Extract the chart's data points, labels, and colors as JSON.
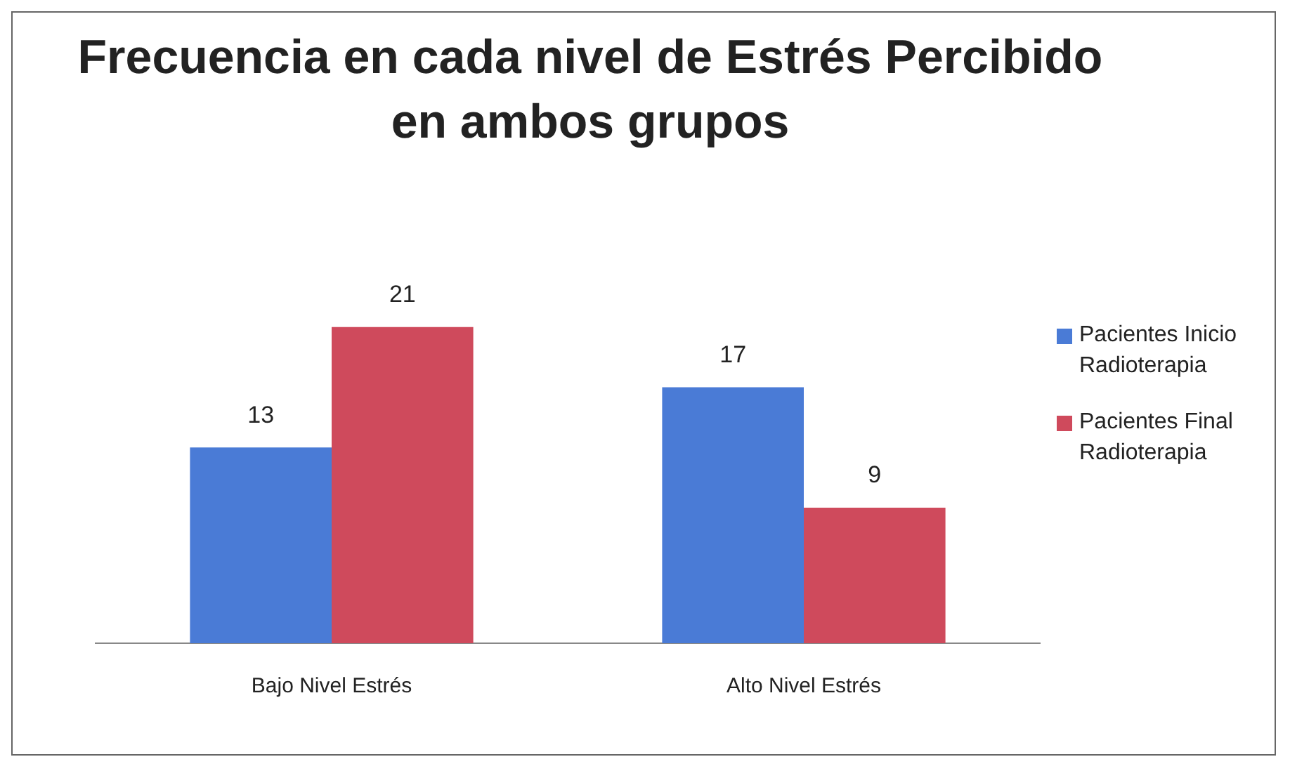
{
  "chart_data": {
    "type": "bar",
    "title": "Frecuencia en cada nivel de Estrés Percibido en ambos grupos",
    "categories": [
      "Bajo Nivel Estrés",
      "Alto Nivel Estrés"
    ],
    "series": [
      {
        "name": "Pacientes Inicio Radioterapia",
        "color": "#4a7bd6",
        "values": [
          13,
          17
        ]
      },
      {
        "name": "Pacientes Final Radioterapia",
        "color": "#cf4a5c",
        "values": [
          21,
          9
        ]
      }
    ],
    "relative": false,
    "data_labels": true,
    "grid": false,
    "legend": "right"
  }
}
